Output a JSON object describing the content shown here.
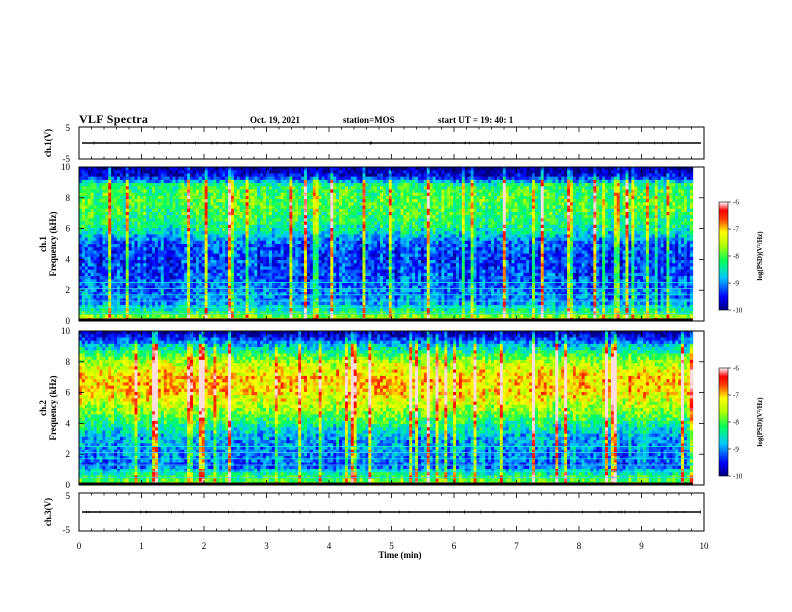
{
  "header": {
    "title": "VLF Spectra",
    "date": "Oct. 19, 2021",
    "station": "station=MOS",
    "start": "start  UT =   19: 40: 1"
  },
  "chart_data": [
    {
      "type": "line",
      "name": "ch1-waveform",
      "ylabel": "ch.1(V)",
      "ylim": [
        -5,
        5
      ],
      "yticks": [
        "5",
        "-5"
      ],
      "xlim": [
        0,
        10
      ],
      "baseline": 0
    },
    {
      "type": "heatmap",
      "name": "ch1-spectrogram",
      "ylabel": "ch.1\nFrequency (kHz)",
      "ylim": [
        0,
        10
      ],
      "yticks": [
        "0",
        "2",
        "4",
        "6",
        "8",
        "10"
      ],
      "xlim": [
        0,
        10
      ],
      "data_end_min": 9.82,
      "colorbar": {
        "label": "log(PSD)(V²/Hz)",
        "range": [
          -10,
          -6
        ],
        "ticks": [
          "-6",
          "-7",
          "-8",
          "-9",
          "-10"
        ]
      },
      "band_profile": [
        {
          "f": 0.2,
          "level": -7.6
        },
        {
          "f": 0.6,
          "level": -8.3
        },
        {
          "f": 1.2,
          "level": -9.0
        },
        {
          "f": 2.0,
          "level": -9.1
        },
        {
          "f": 3.0,
          "level": -9.3
        },
        {
          "f": 4.0,
          "level": -9.4
        },
        {
          "f": 5.0,
          "level": -9.2
        },
        {
          "f": 6.0,
          "level": -8.4
        },
        {
          "f": 7.0,
          "level": -8.1
        },
        {
          "f": 8.0,
          "level": -8.0
        },
        {
          "f": 8.8,
          "level": -8.2
        },
        {
          "f": 9.4,
          "level": -9.6
        },
        {
          "f": 10.0,
          "level": -10.0
        }
      ]
    },
    {
      "type": "heatmap",
      "name": "ch2-spectrogram",
      "ylabel": "ch.2\nFrequency (kHz)",
      "ylim": [
        0,
        10
      ],
      "yticks": [
        "0",
        "2",
        "4",
        "6",
        "8",
        "10"
      ],
      "xlim": [
        0,
        10
      ],
      "data_end_min": 9.82,
      "colorbar": {
        "label": "log(PSD)(V²/Hz)",
        "range": [
          -10,
          -6
        ],
        "ticks": [
          "-6",
          "-7",
          "-8",
          "-9",
          "-10"
        ]
      },
      "band_profile": [
        {
          "f": 0.2,
          "level": -7.9
        },
        {
          "f": 0.6,
          "level": -8.2
        },
        {
          "f": 1.2,
          "level": -9.2
        },
        {
          "f": 2.0,
          "level": -9.0
        },
        {
          "f": 3.0,
          "level": -8.9
        },
        {
          "f": 4.0,
          "level": -8.3
        },
        {
          "f": 5.0,
          "level": -7.6
        },
        {
          "f": 6.0,
          "level": -7.1
        },
        {
          "f": 7.0,
          "level": -7.0
        },
        {
          "f": 8.0,
          "level": -7.6
        },
        {
          "f": 9.0,
          "level": -8.7
        },
        {
          "f": 9.6,
          "level": -9.5
        },
        {
          "f": 10.0,
          "level": -10.0
        }
      ]
    },
    {
      "type": "line",
      "name": "ch3-waveform",
      "ylabel": "ch.3(V)",
      "ylim": [
        -5,
        5
      ],
      "yticks": [
        "5",
        "-5"
      ],
      "xlim": [
        0,
        10
      ],
      "baseline": 0
    }
  ],
  "xaxis": {
    "label": "Time  (min)",
    "ticks": [
      "0",
      "1",
      "2",
      "3",
      "4",
      "5",
      "6",
      "7",
      "8",
      "9",
      "10"
    ]
  }
}
